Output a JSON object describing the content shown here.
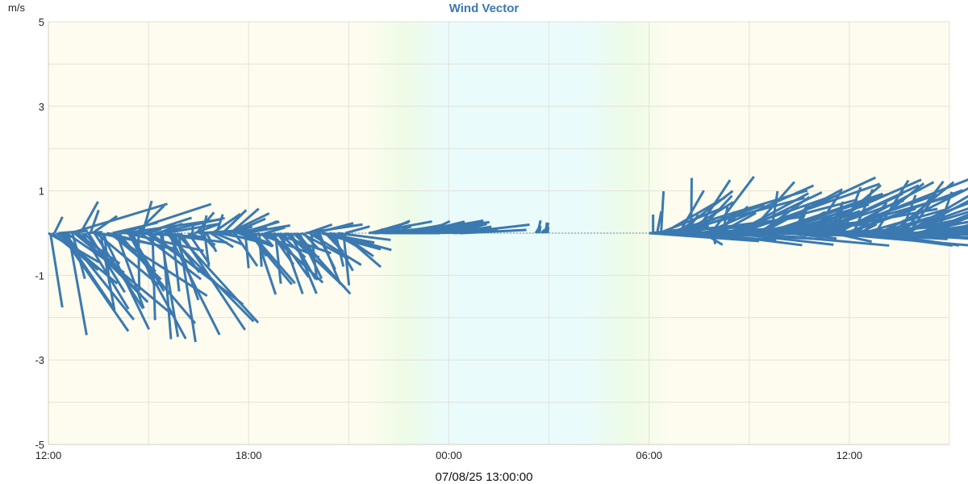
{
  "chart_data": {
    "type": "line",
    "title": "Wind Vector",
    "ylabel": "m/s",
    "footer": "07/08/25 13:00:00",
    "ylim": [
      -5,
      5
    ],
    "xlim_hours": [
      12,
      39
    ],
    "ytick_labels": [
      "5",
      "3",
      "1",
      "-1",
      "-3",
      "-5"
    ],
    "ytick_values": [
      5,
      3,
      1,
      -1,
      -3,
      -5
    ],
    "xtick_labels": [
      "12:00",
      "18:00",
      "00:00",
      "06:00",
      "12:00"
    ],
    "xtick_hours": [
      12,
      18,
      24,
      30,
      36
    ],
    "grid": true,
    "colors": {
      "title": "#3a78b0",
      "vector": "#3b79b0",
      "day_band": "#fdfcee",
      "night_band": "#eafbfb",
      "twilight": "#eefbe6",
      "grid": "#e2e2da"
    },
    "series": [
      {
        "segments": [
          {
            "hours": [
              12.0,
              16.0
            ],
            "u": [
              0.0,
              3.2
            ],
            "v": [
              -2.6,
              0.8
            ]
          },
          {
            "hours": [
              16.2,
              17.9
            ],
            "u": [
              0.0,
              1.6
            ],
            "v": [
              -0.9,
              0.6
            ]
          },
          {
            "hours": [
              17.9,
              20.9
            ],
            "u": [
              0.0,
              2.0
            ],
            "v": [
              -1.5,
              0.3
            ]
          },
          {
            "hours": [
              21.6,
              24.4
            ],
            "u": [
              0.0,
              2.6
            ],
            "v": [
              0.0,
              0.3
            ]
          },
          {
            "hours": [
              26.6,
              27.0
            ],
            "u": [
              0.0,
              0.2
            ],
            "v": [
              0.0,
              0.35
            ]
          },
          {
            "hours": [
              30.0,
              39.0
            ],
            "u": [
              0.0,
              4.5
            ],
            "v": [
              -0.3,
              1.35
            ]
          }
        ]
      }
    ]
  }
}
